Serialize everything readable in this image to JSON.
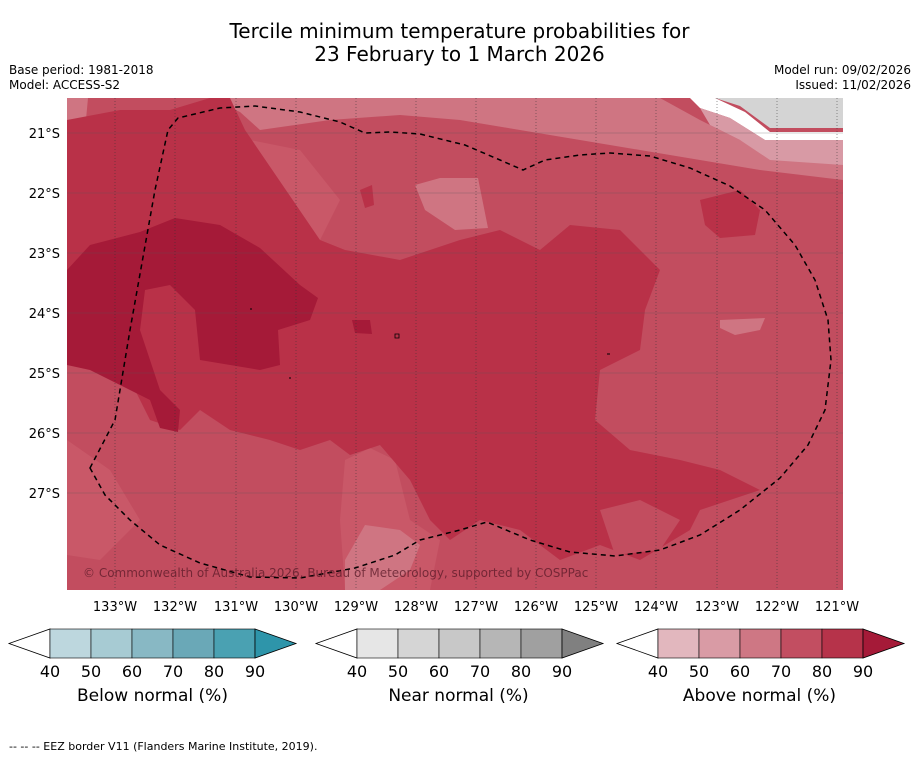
{
  "title": {
    "line1": "Tercile minimum temperature probabilities for",
    "line2": "23 February to 1 March 2026"
  },
  "meta": {
    "base_period": "Base period: 1981-2018",
    "model": "Model: ACCESS-S2",
    "model_run": "Model run: 09/02/2026",
    "issued": "Issued: 11/02/2026"
  },
  "map": {
    "copyright": "© Commonwealth of Australia 2026, Bureau of Meteorology, supported by COSPPac",
    "lat_labels": [
      "21°S",
      "22°S",
      "23°S",
      "24°S",
      "25°S",
      "26°S",
      "27°S"
    ],
    "lon_labels": [
      "133°W",
      "132°W",
      "131°W",
      "130°W",
      "129°W",
      "128°W",
      "127°W",
      "126°W",
      "125°W",
      "124°W",
      "123°W",
      "122°W",
      "121°W"
    ],
    "colors": {
      "above_40": "#e0b8bf",
      "above_50": "#d89aa5",
      "above_60": "#cf7582",
      "above_70": "#c24d5f",
      "above_80": "#b93148",
      "above_90": "#a51a38",
      "near_70": "#d4d4d4"
    }
  },
  "colorbars": [
    {
      "label": "Below normal (%)",
      "colors": [
        "#ffffff",
        "#bdd7de",
        "#a7cbd3",
        "#88b8c4",
        "#6aa8b7",
        "#4aa1b2",
        "#2e95aa"
      ],
      "ticks": [
        "40",
        "50",
        "60",
        "70",
        "80",
        "90"
      ]
    },
    {
      "label": "Near normal (%)",
      "colors": [
        "#ffffff",
        "#e6e6e6",
        "#d5d5d5",
        "#c8c8c8",
        "#b6b6b6",
        "#a0a0a0",
        "#808080"
      ],
      "ticks": [
        "40",
        "50",
        "60",
        "70",
        "80",
        "90"
      ]
    },
    {
      "label": "Above normal (%)",
      "colors": [
        "#ffffff",
        "#e2b7be",
        "#d99ba5",
        "#ce7784",
        "#c24e61",
        "#b6334a",
        "#a51a38"
      ],
      "ticks": [
        "40",
        "50",
        "60",
        "70",
        "80",
        "90"
      ]
    }
  ],
  "footer": "--  --  -- EEZ border V11 (Flanders Marine Institute, 2019)."
}
